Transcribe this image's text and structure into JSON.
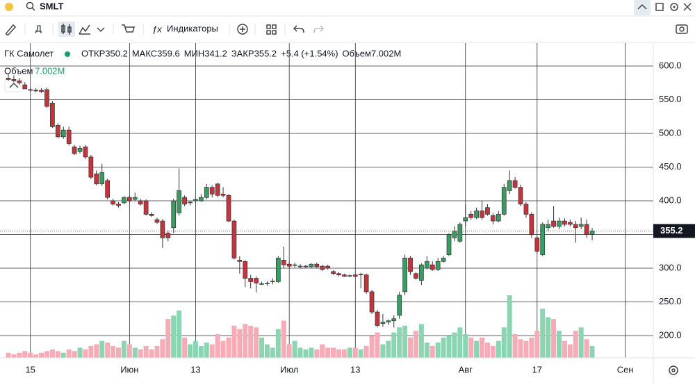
{
  "toolbar": {
    "ticker": "SMLT",
    "interval": "Д",
    "indicators": "Индикаторы"
  },
  "chart_data": {
    "type": "candlestick",
    "title": "ГК Самолет",
    "legend_labels": {
      "open": "ОТКР",
      "high": "МАКС",
      "low": "МИН",
      "close": "ЗАКР",
      "volume": "Объем"
    },
    "change": "+5.4 (+1.54%)",
    "volume_label": "7.002M",
    "up_color": "#3b9b63",
    "down_color": "#c2353d",
    "volume_up_color": "#8cd5b3",
    "volume_down_color": "#f5acb6",
    "grid": true,
    "ylim": [
      167,
      634
    ],
    "yticks": [
      {
        "value": 200,
        "label": "200.0"
      },
      {
        "value": 250,
        "label": "250.0"
      },
      {
        "value": 300,
        "label": "300.0"
      },
      {
        "value": 350,
        "label": "350.0"
      },
      {
        "value": 400,
        "label": "400.0"
      },
      {
        "value": 450,
        "label": "450.0"
      },
      {
        "value": 500,
        "label": "500.0"
      },
      {
        "value": 550,
        "label": "550.0"
      },
      {
        "value": 600,
        "label": "600.0"
      }
    ],
    "categories": [
      null,
      null,
      null,
      null,
      "15",
      null,
      null,
      null,
      null,
      null,
      null,
      null,
      null,
      null,
      null,
      null,
      null,
      null,
      null,
      null,
      null,
      null,
      "Июн",
      null,
      null,
      null,
      null,
      null,
      null,
      null,
      null,
      null,
      null,
      null,
      "13",
      null,
      null,
      null,
      null,
      null,
      null,
      null,
      null,
      null,
      null,
      null,
      null,
      null,
      null,
      null,
      null,
      "Июл",
      null,
      null,
      null,
      null,
      null,
      null,
      null,
      null,
      null,
      null,
      null,
      "13",
      null,
      null,
      null,
      null,
      null,
      null,
      null,
      null,
      null,
      null,
      null,
      null,
      null,
      null,
      null,
      null,
      null,
      null,
      null,
      "Авг",
      null,
      null,
      null,
      null,
      null,
      null,
      null,
      null,
      null,
      null,
      null,
      null,
      "17",
      null,
      null,
      null,
      null,
      null,
      null,
      null,
      null,
      null,
      null,
      null,
      null,
      null,
      null,
      null,
      "Сен",
      null
    ],
    "open": [
      582,
      580,
      578,
      572,
      565,
      564,
      564,
      565,
      545,
      512,
      495,
      505,
      480,
      473,
      480,
      465,
      440,
      425,
      430,
      400,
      395,
      397,
      405,
      402,
      400,
      400,
      380,
      372,
      370,
      352,
      360,
      382,
      405,
      397,
      400,
      400,
      405,
      420,
      425,
      410,
      408,
      370,
      312,
      310,
      285,
      285,
      277,
      277,
      280,
      280,
      312,
      306,
      305,
      303,
      303,
      302,
      306,
      303,
      303,
      295,
      292,
      290,
      289,
      290,
      290,
      290,
      265,
      235,
      218,
      220,
      222,
      230,
      265,
      315,
      292,
      282,
      300,
      305,
      298,
      310,
      320,
      345,
      340,
      370,
      380,
      375,
      385,
      390,
      378,
      370,
      380,
      415,
      430,
      420,
      395,
      380,
      345,
      320,
      360,
      370,
      362,
      370,
      368,
      365,
      362,
      365,
      350.2,
      null,
      null,
      null,
      null,
      null,
      null,
      null
    ],
    "high": [
      588,
      586,
      582,
      576,
      568,
      567,
      567,
      568,
      548,
      515,
      510,
      510,
      483,
      482,
      483,
      468,
      445,
      455,
      433,
      403,
      398,
      407,
      408,
      412,
      403,
      402,
      383,
      375,
      373,
      355,
      403,
      448,
      408,
      400,
      403,
      410,
      425,
      423,
      427,
      420,
      410,
      372,
      318,
      312,
      290,
      288,
      280,
      281,
      285,
      318,
      332,
      310,
      308,
      306,
      305,
      307,
      308,
      305,
      305,
      297,
      294,
      292,
      291,
      292,
      293,
      292,
      268,
      238,
      232,
      224,
      230,
      265,
      320,
      318,
      294,
      307,
      318,
      310,
      315,
      318,
      352,
      362,
      368,
      395,
      385,
      390,
      400,
      395,
      382,
      385,
      425,
      445,
      435,
      424,
      398,
      383,
      348,
      368,
      372,
      392,
      375,
      374,
      372,
      370,
      375,
      372,
      359.6,
      null,
      null,
      null,
      null,
      null,
      null,
      null
    ],
    "low": [
      578,
      576,
      572,
      566,
      562,
      561,
      560,
      538,
      508,
      493,
      492,
      482,
      468,
      470,
      462,
      432,
      423,
      422,
      402,
      393,
      390,
      395,
      397,
      399,
      393,
      378,
      376,
      366,
      330,
      340,
      352,
      378,
      392,
      393,
      396,
      398,
      402,
      405,
      405,
      405,
      368,
      313,
      292,
      272,
      270,
      264,
      275,
      274,
      276,
      278,
      300,
      300,
      301,
      300,
      300,
      300,
      300,
      296,
      298,
      290,
      288,
      287,
      287,
      286,
      270,
      262,
      232,
      212,
      213,
      216,
      212,
      225,
      260,
      290,
      283,
      275,
      298,
      296,
      296,
      308,
      318,
      340,
      338,
      362,
      372,
      373,
      372,
      378,
      365,
      368,
      378,
      410,
      418,
      392,
      375,
      345,
      322,
      318,
      355,
      360,
      358,
      362,
      362,
      338,
      358,
      345,
      341.2,
      null,
      null,
      null,
      null,
      null,
      null,
      null
    ],
    "close": [
      580,
      578,
      575,
      566,
      564,
      563,
      562,
      540,
      510,
      495,
      505,
      485,
      470,
      478,
      465,
      435,
      425,
      442,
      405,
      395,
      393,
      405,
      400,
      405,
      395,
      380,
      378,
      368,
      345,
      345,
      400,
      415,
      395,
      398,
      402,
      405,
      420,
      410,
      408,
      408,
      370,
      315,
      310,
      285,
      280,
      278,
      277,
      278,
      281,
      315,
      305,
      303,
      305,
      303,
      303,
      306,
      302,
      298,
      300,
      292,
      290,
      288,
      289,
      288,
      291,
      265,
      235,
      215,
      220,
      222,
      225,
      260,
      315,
      295,
      285,
      305,
      310,
      298,
      310,
      315,
      350,
      355,
      365,
      375,
      375,
      385,
      375,
      380,
      370,
      380,
      420,
      430,
      420,
      395,
      380,
      350,
      325,
      365,
      365,
      362,
      370,
      365,
      365,
      360,
      365,
      350,
      355.2,
      null,
      null,
      null,
      null,
      null,
      null,
      null
    ],
    "volume": [
      3,
      2,
      3,
      4,
      3,
      2,
      3,
      4,
      5,
      4,
      3,
      5,
      4,
      6,
      5,
      7,
      8,
      10,
      9,
      7,
      6,
      10,
      8,
      6,
      5,
      7,
      5,
      7,
      11,
      23,
      25,
      28,
      12,
      8,
      10,
      7,
      9,
      8,
      14,
      10,
      12,
      19,
      17,
      20,
      19,
      18,
      12,
      8,
      6,
      17,
      22,
      8,
      10,
      6,
      5,
      6,
      5,
      8,
      6,
      6,
      5,
      5,
      6,
      6,
      5,
      7,
      13,
      15,
      8,
      10,
      15,
      18,
      19,
      12,
      16,
      20,
      9,
      7,
      9,
      12,
      13,
      15,
      18,
      14,
      12,
      10,
      12,
      9,
      7,
      10,
      18,
      37,
      14,
      11,
      10,
      12,
      16,
      29,
      24,
      23,
      16,
      10,
      8,
      16,
      18,
      11,
      7.002,
      null,
      null,
      null,
      null,
      null,
      null,
      null
    ]
  }
}
